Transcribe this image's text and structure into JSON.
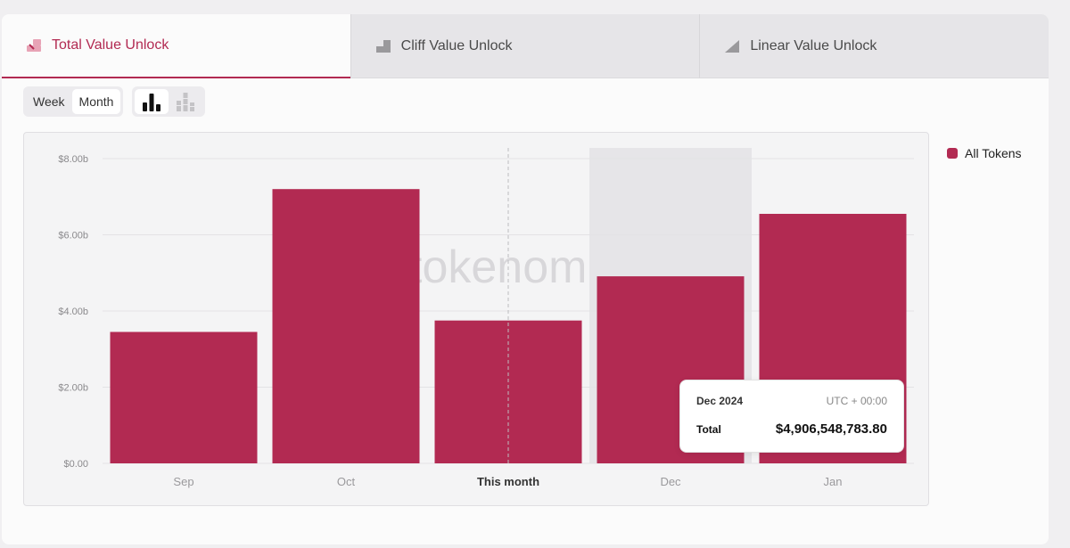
{
  "tabs": [
    {
      "label": "Total Value Unlock",
      "icon": "total-unlock-icon",
      "active": true
    },
    {
      "label": "Cliff Value Unlock",
      "icon": "cliff-unlock-icon",
      "active": false
    },
    {
      "label": "Linear Value Unlock",
      "icon": "linear-unlock-icon",
      "active": false
    }
  ],
  "toolbar": {
    "period_options": [
      "Week",
      "Month"
    ],
    "selected_period": "Month",
    "chart_modes": [
      "bar-chart-icon",
      "stacked-bar-chart-icon"
    ],
    "selected_mode": "bar-chart-icon"
  },
  "watermark": "tokenom",
  "legend": {
    "label": "All Tokens",
    "color": "#b22a52"
  },
  "tooltip": {
    "date": "Dec 2024",
    "timezone": "UTC + 00:00",
    "label": "Total",
    "value": "$4,906,548,783.80"
  },
  "colors": {
    "accent": "#b22a52",
    "bar": "#b22a52",
    "highlight": "#e6e5e8"
  },
  "chart_data": {
    "type": "bar",
    "categories": [
      "Sep",
      "Oct",
      "This month",
      "Dec",
      "Jan"
    ],
    "series": [
      {
        "name": "All Tokens",
        "values": [
          3.45,
          7.2,
          3.75,
          4.91,
          6.55
        ]
      }
    ],
    "ylim": [
      0,
      8
    ],
    "yticks": [
      0,
      2,
      4,
      6,
      8
    ],
    "ytick_labels": [
      "$0.00",
      "$2.00b",
      "$4.00b",
      "$6.00b",
      "$8.00b"
    ],
    "current_category": "This month",
    "highlighted_category": "Dec",
    "grid": true
  }
}
